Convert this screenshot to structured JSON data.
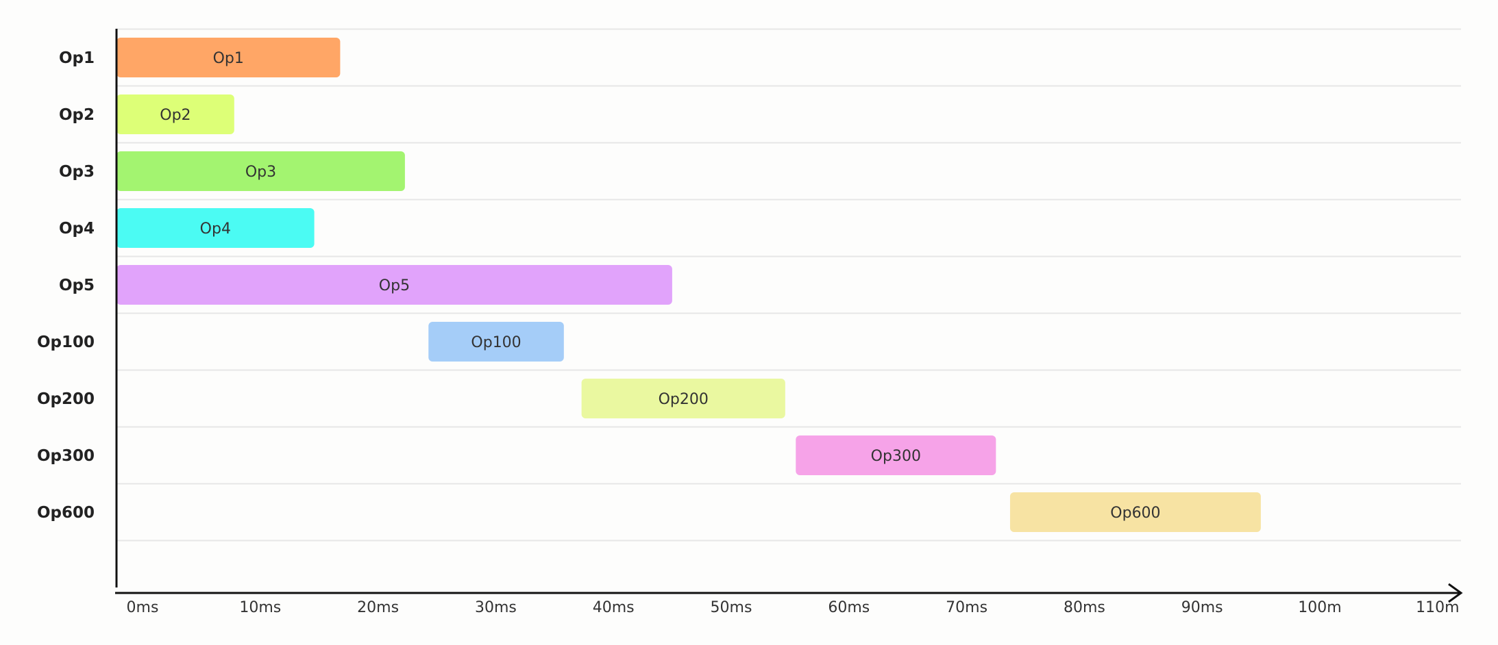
{
  "chart_data": {
    "type": "gantt",
    "title": "",
    "xlabel": "",
    "ylabel": "",
    "xlim": [
      -1,
      114
    ],
    "x_ticks": [
      0,
      10,
      20,
      30,
      40,
      50,
      60,
      70,
      80,
      90,
      100,
      110
    ],
    "x_tick_labels": [
      "0ms",
      "10ms",
      "20ms",
      "30ms",
      "40ms",
      "50ms",
      "60ms",
      "70ms",
      "80ms",
      "90ms",
      "100m",
      "110m"
    ],
    "grid": true,
    "tasks": [
      {
        "row_label": "Op1",
        "bar_label": "Op1",
        "start": 0,
        "end": 19,
        "color": "#ffa666"
      },
      {
        "row_label": "Op2",
        "bar_label": "Op2",
        "start": 0,
        "end": 10,
        "color": "#ddff77"
      },
      {
        "row_label": "Op3",
        "bar_label": "Op3",
        "start": 0,
        "end": 24.5,
        "color": "#a3f470"
      },
      {
        "row_label": "Op4",
        "bar_label": "Op4",
        "start": 0,
        "end": 16.8,
        "color": "#4bfbf3"
      },
      {
        "row_label": "Op5",
        "bar_label": "Op5",
        "start": 0,
        "end": 47.2,
        "color": "#e1a3fb"
      },
      {
        "row_label": "Op100",
        "bar_label": "Op100",
        "start": 26.5,
        "end": 38,
        "color": "#a5cdf8"
      },
      {
        "row_label": "Op200",
        "bar_label": "Op200",
        "start": 39.5,
        "end": 56.8,
        "color": "#eaf8a0"
      },
      {
        "row_label": "Op300",
        "bar_label": "Op300",
        "start": 57.7,
        "end": 74.7,
        "color": "#f6a3e8"
      },
      {
        "row_label": "Op600",
        "bar_label": "Op600",
        "start": 75.9,
        "end": 97.2,
        "color": "#f7e3a3"
      }
    ]
  }
}
